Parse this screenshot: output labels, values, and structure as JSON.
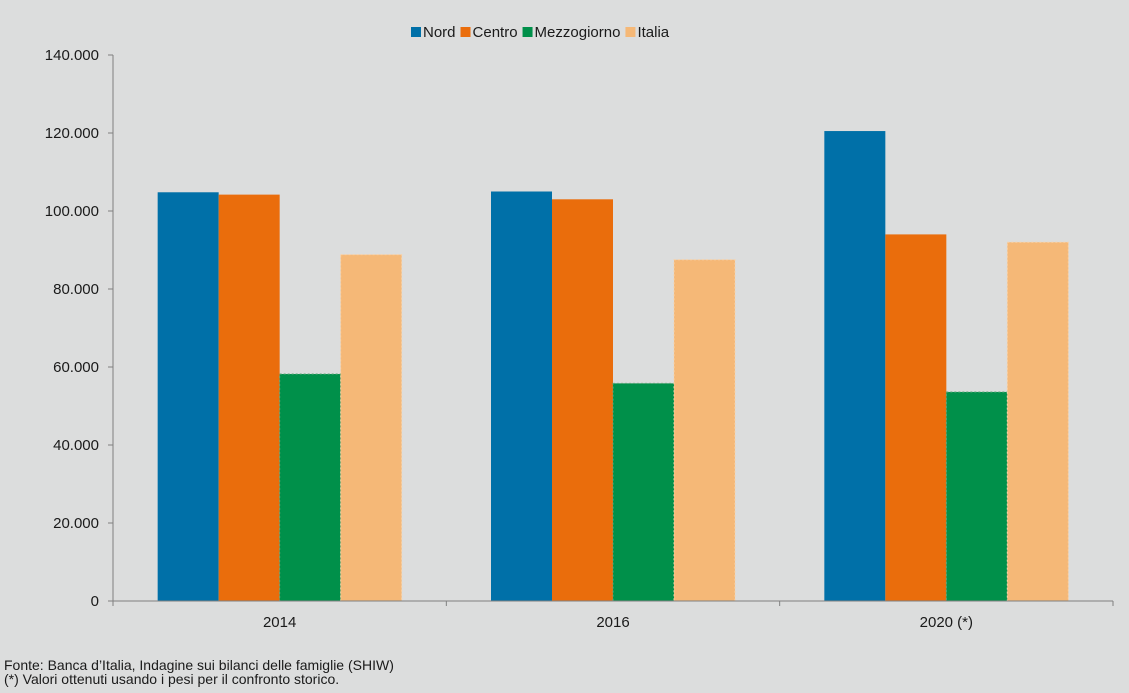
{
  "chart_data": {
    "type": "bar",
    "title": "",
    "xlabel": "",
    "ylabel": "",
    "categories": [
      "2014",
      "2016",
      "2020 (*)"
    ],
    "series": [
      {
        "name": "Nord",
        "color": "#0070a8",
        "values": [
          104800,
          105000,
          120500
        ]
      },
      {
        "name": "Centro",
        "color": "#ea6d0c",
        "values": [
          104200,
          103000,
          94000
        ]
      },
      {
        "name": "Mezzogiorno",
        "color": "#00904a",
        "values": [
          58200,
          55800,
          53600
        ]
      },
      {
        "name": "Italia",
        "color": "#f5b877",
        "values": [
          88800,
          87500,
          92000
        ]
      }
    ],
    "ylim": [
      0,
      140000
    ],
    "yticks": [
      0,
      20000,
      40000,
      60000,
      80000,
      100000,
      120000,
      140000
    ],
    "ytick_labels": [
      "0",
      "20.000",
      "40.000",
      "60.000",
      "80.000",
      "100.000",
      "120.000",
      "140.000"
    ],
    "grid": false,
    "legend_position": "top-center"
  },
  "footnotes": {
    "source": "Fonte: Banca d’Italia, Indagine sui bilanci delle famiglie (SHIW)",
    "note": "(*) Valori ottenuti usando i pesi per il confronto storico."
  }
}
